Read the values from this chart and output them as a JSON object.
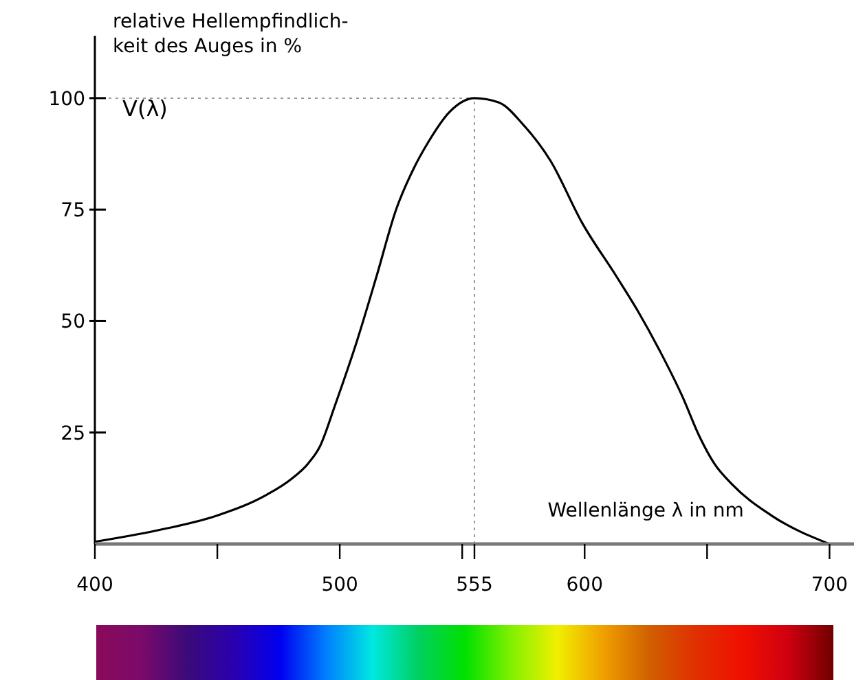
{
  "chart_data": {
    "type": "line",
    "ylabel": "relative Hellempfindlich-\nkeit des Auges in %",
    "xlabel": "Wellenlänge λ in nm",
    "x": [
      400,
      425,
      450,
      470,
      480,
      487,
      492,
      498,
      507,
      515,
      523,
      530,
      536,
      545,
      555,
      565,
      575,
      586,
      599,
      613,
      622,
      631,
      640,
      647,
      653,
      660,
      676,
      700
    ],
    "series": [
      {
        "name": "V(λ)",
        "color": "#000000",
        "values": [
          0.5,
          3,
          6.4,
          11,
          14.5,
          18,
          22,
          31,
          45.5,
          60,
          75,
          84,
          90,
          97,
          100,
          99,
          94,
          86,
          72,
          60,
          52,
          43,
          33,
          24,
          18,
          13.5,
          6.5,
          0
        ]
      }
    ],
    "xlim": [
      400,
      710
    ],
    "xticks": [
      400,
      {
        "value": 450,
        "label": null
      },
      500,
      {
        "value": 550,
        "label": null
      },
      555,
      600,
      {
        "value": 650,
        "label": null
      },
      700
    ],
    "ylim": [
      0,
      114
    ],
    "yticks": [
      25,
      50,
      75,
      100
    ],
    "ref_lines": [
      {
        "axis": "y",
        "value": 100,
        "line_style": "dotted",
        "color": "#999999"
      },
      {
        "axis": "x",
        "value": 555,
        "line_style": "dotted",
        "color": "#999999"
      }
    ],
    "grid": false,
    "marker": "none",
    "line_style": "solid"
  }
}
